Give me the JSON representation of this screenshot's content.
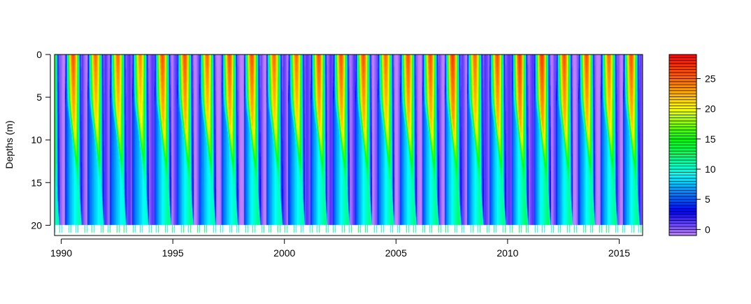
{
  "chart_data": {
    "type": "heatmap",
    "title": "",
    "xlabel": "",
    "ylabel": "Depths (m)",
    "x_range": [
      1989.7,
      2016.05
    ],
    "y_range": [
      0,
      21.2
    ],
    "y_reversed": true,
    "x_ticks": [
      1990,
      1995,
      2000,
      2005,
      2010,
      2015
    ],
    "x_tick_labels": [
      "1990",
      "1995",
      "2000",
      "2005",
      "2010",
      "2015"
    ],
    "y_ticks": [
      0,
      5,
      10,
      15,
      20
    ],
    "y_tick_labels": [
      "0",
      "5",
      "10",
      "15",
      "20"
    ],
    "years": [
      1990,
      1991,
      1992,
      1993,
      1994,
      1995,
      1996,
      1997,
      1998,
      1999,
      2000,
      2001,
      2002,
      2003,
      2004,
      2005,
      2006,
      2007,
      2008,
      2009,
      2010,
      2011,
      2012,
      2013,
      2014,
      2015
    ],
    "max_depth": 20,
    "summer_surface_max": [
      26,
      25,
      25,
      24,
      26,
      26,
      25,
      26,
      26,
      25,
      25,
      26,
      26,
      26,
      25,
      26,
      26,
      27,
      25,
      26,
      27,
      27,
      26,
      26,
      25,
      26
    ],
    "summer_bottom_max": [
      12,
      11,
      11,
      11,
      13,
      13,
      12,
      12,
      13,
      12,
      12,
      13,
      13,
      13,
      13,
      13,
      13,
      14,
      13,
      13,
      14,
      14,
      13,
      13,
      13,
      13
    ],
    "winter_min": 0,
    "colorbar": {
      "min": -1,
      "max": 29,
      "ticks": [
        0,
        5,
        10,
        15,
        20,
        25
      ],
      "tick_labels": [
        "0",
        "5",
        "10",
        "15",
        "20",
        "25"
      ],
      "colors": [
        "#c080ff",
        "#0000ff",
        "#00ffff",
        "#00ff00",
        "#ffff00",
        "#ff8000",
        "#ff0000"
      ],
      "color_stops": [
        -1,
        3,
        9,
        15,
        20,
        24,
        29
      ]
    }
  }
}
